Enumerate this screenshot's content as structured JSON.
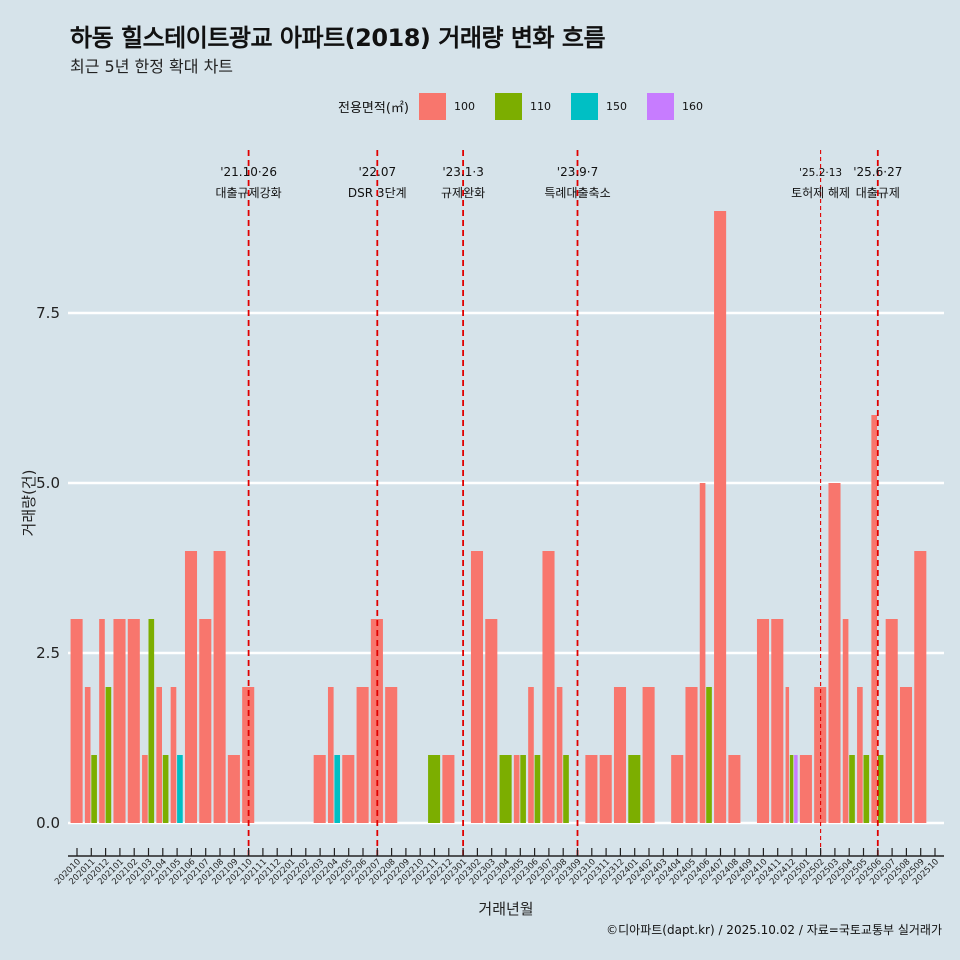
{
  "title": "하동 힐스테이트광교 아파트(2018) 거래량 변화 흐름",
  "subtitle": "최근 5년 한정 확대 차트",
  "caption": "©디아파트(dapt.kr) / 2025.10.02 / 자료=국토교통부 실거래가",
  "legend": {
    "title": "전용면적(㎡)",
    "items": [
      {
        "label": "100",
        "color": "#F8766D"
      },
      {
        "label": "110",
        "color": "#7CAE00"
      },
      {
        "label": "150",
        "color": "#00BFC4"
      },
      {
        "label": "160",
        "color": "#C77CFF"
      }
    ]
  },
  "chart_data": {
    "type": "bar",
    "title": "하동 힐스테이트광교 아파트(2018) 거래량 변화 흐름",
    "subtitle": "최근 5년 한정 확대 차트",
    "xlabel": "거래년월",
    "ylabel": "거래량(건)",
    "ylim": [
      0,
      9.5
    ],
    "yticks": [
      0,
      2.5,
      5,
      7.5
    ],
    "ytick_labels": [
      "0.0",
      "2.5",
      "5.0",
      "7.5"
    ],
    "grid": "horizontal",
    "legend_position": "top",
    "categories": [
      "202010",
      "202011",
      "202012",
      "202101",
      "202102",
      "202103",
      "202104",
      "202105",
      "202106",
      "202107",
      "202108",
      "202109",
      "202110",
      "202111",
      "202112",
      "202201",
      "202202",
      "202203",
      "202204",
      "202205",
      "202206",
      "202207",
      "202208",
      "202209",
      "202210",
      "202211",
      "202212",
      "202301",
      "202302",
      "202303",
      "202304",
      "202305",
      "202306",
      "202307",
      "202308",
      "202309",
      "202310",
      "202311",
      "202312",
      "202401",
      "202402",
      "202403",
      "202404",
      "202405",
      "202406",
      "202407",
      "202408",
      "202409",
      "202410",
      "202411",
      "202412",
      "202501",
      "202502",
      "202503",
      "202504",
      "202505",
      "202506",
      "202507",
      "202508",
      "202509",
      "202510"
    ],
    "series": [
      {
        "name": "100",
        "values": [
          3,
          2,
          3,
          3,
          3,
          1,
          2,
          2,
          4,
          3,
          4,
          1,
          2,
          0,
          0,
          0,
          0,
          1,
          2,
          1,
          2,
          3,
          2,
          0,
          0,
          0,
          1,
          0,
          4,
          3,
          0,
          1,
          2,
          4,
          2,
          0,
          1,
          1,
          2,
          0,
          2,
          0,
          1,
          2,
          5,
          9,
          1,
          0,
          3,
          3,
          2,
          1,
          2,
          5,
          3,
          2,
          6,
          3,
          2,
          4,
          0
        ]
      },
      {
        "name": "110",
        "values": [
          0,
          1,
          2,
          0,
          0,
          3,
          1,
          0,
          0,
          0,
          0,
          0,
          0,
          0,
          0,
          0,
          0,
          0,
          0,
          0,
          0,
          0,
          0,
          0,
          0,
          1,
          0,
          0,
          0,
          0,
          1,
          1,
          1,
          0,
          1,
          0,
          0,
          0,
          0,
          1,
          0,
          0,
          0,
          0,
          2,
          0,
          0,
          0,
          0,
          0,
          1,
          0,
          0,
          0,
          1,
          1,
          1,
          0,
          0,
          0,
          0
        ]
      },
      {
        "name": "150",
        "values": [
          0,
          0,
          0,
          0,
          0,
          0,
          0,
          1,
          0,
          0,
          0,
          0,
          0,
          0,
          0,
          0,
          0,
          0,
          1,
          0,
          0,
          0,
          0,
          0,
          0,
          0,
          0,
          0,
          0,
          0,
          0,
          0,
          0,
          0,
          0,
          0,
          0,
          0,
          0,
          0,
          0,
          0,
          0,
          0,
          0,
          0,
          0,
          0,
          0,
          0,
          0,
          0,
          0,
          0,
          0,
          0,
          0,
          0,
          0,
          0,
          0
        ]
      },
      {
        "name": "160",
        "values": [
          0,
          0,
          0,
          0,
          0,
          0,
          0,
          0,
          0,
          0,
          0,
          0,
          0,
          0,
          0,
          0,
          0,
          0,
          0,
          0,
          0,
          0,
          0,
          0,
          0,
          0,
          0,
          0,
          0,
          0,
          0,
          0,
          0,
          0,
          0,
          0,
          0,
          0,
          0,
          0,
          0,
          0,
          0,
          0,
          0,
          0,
          0,
          0,
          0,
          0,
          1,
          0,
          0,
          0,
          0,
          0,
          0,
          0,
          0,
          0,
          0
        ]
      }
    ],
    "annotations": [
      {
        "x": "202110",
        "date": "'21.10·26",
        "label": "대출규제강화",
        "style": "thick"
      },
      {
        "x": "202207",
        "date": "'22.07",
        "label": "DSR 3단계",
        "style": "thick"
      },
      {
        "x": "202301",
        "date": "'23.1·3",
        "label": "규제완화",
        "style": "thick"
      },
      {
        "x": "202309",
        "date": "'23.9·7",
        "label": "특례대출축소",
        "style": "thick"
      },
      {
        "x": "202502",
        "date": "'25.2·13",
        "label": "토허제 해제",
        "style": "thin"
      },
      {
        "x": "202506",
        "date": "'25.6·27",
        "label": "대출규제",
        "style": "thick"
      }
    ]
  }
}
